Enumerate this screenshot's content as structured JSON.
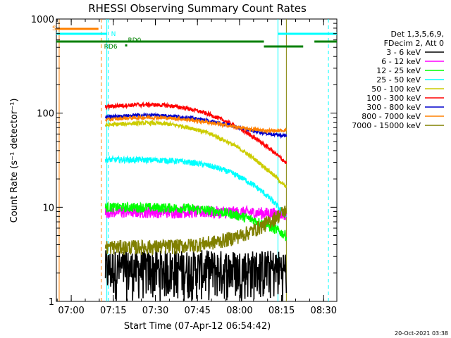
{
  "chart_data": {
    "type": "line",
    "title": "RHESSI Observing Summary Count Rates",
    "xlabel": "Start Time (07-Apr-12 06:54:42)",
    "ylabel": "Count Rate (s⁻¹ detector⁻¹)",
    "yscale": "log",
    "ylim": [
      1,
      1000
    ],
    "xlim_minutes": [
      0,
      100
    ],
    "x_ticks": [
      "07:00",
      "07:15",
      "07:30",
      "07:45",
      "08:00",
      "08:15",
      "08:30"
    ],
    "y_ticks": [
      "1",
      "10",
      "100",
      "1000"
    ],
    "legend_header": [
      "Det 1,3,5,6,9,",
      "FDecim 2, Att 0"
    ],
    "legend_position": "right",
    "timestamp": "20-Oct-2021 03:38",
    "flags": [
      {
        "label": "S"
      },
      {
        "label": "N"
      },
      {
        "label": "RD0"
      },
      {
        "label": "RD6"
      }
    ],
    "series": [
      {
        "name": "3 - 6 keV",
        "color": "#000000",
        "level_start": 2.0,
        "level_end": 2.5
      },
      {
        "name": "6 - 12 keV",
        "color": "#ff00ff",
        "level_start": 9.0,
        "level_end": 8.5
      },
      {
        "name": "12 - 25 keV",
        "color": "#00ff00",
        "level_start": 10.0,
        "level_end": 5.0
      },
      {
        "name": "25 - 50 keV",
        "color": "#00ffff",
        "level_start": 32.0,
        "level_end": 8.0
      },
      {
        "name": "50 - 100 keV",
        "color": "#cccc00",
        "level_start": 70.0,
        "level_end": 22.0
      },
      {
        "name": "100 - 300 keV",
        "color": "#ff0000",
        "level_start": 110.0,
        "level_end": 40.0
      },
      {
        "name": "300 - 800 keV",
        "color": "#0000cc",
        "level_start": 85.0,
        "level_end": 78.0
      },
      {
        "name": "800 - 7000 keV",
        "color": "#ff8000",
        "level_start": 80.0,
        "level_end": 90.0
      },
      {
        "name": "7000 - 15000 keV",
        "color": "#808000",
        "level_start": 3.8,
        "level_end": 9.5
      }
    ],
    "vertical_markers": [
      {
        "style": "solid",
        "color": "#ff8000",
        "x_min": 1.0
      },
      {
        "style": "dashed",
        "color": "#ff8000",
        "x_min": 16.0
      },
      {
        "style": "solid",
        "color": "#00ffff",
        "x_min": 18.0
      },
      {
        "style": "dashed",
        "color": "#00ffff",
        "x_min": 18.5
      },
      {
        "style": "solid",
        "color": "#00ffff",
        "x_min": 79.0
      },
      {
        "style": "solid",
        "color": "#808000",
        "x_min": 82.0
      },
      {
        "style": "dashed",
        "color": "#00ffff",
        "x_min": 97.0
      }
    ]
  }
}
